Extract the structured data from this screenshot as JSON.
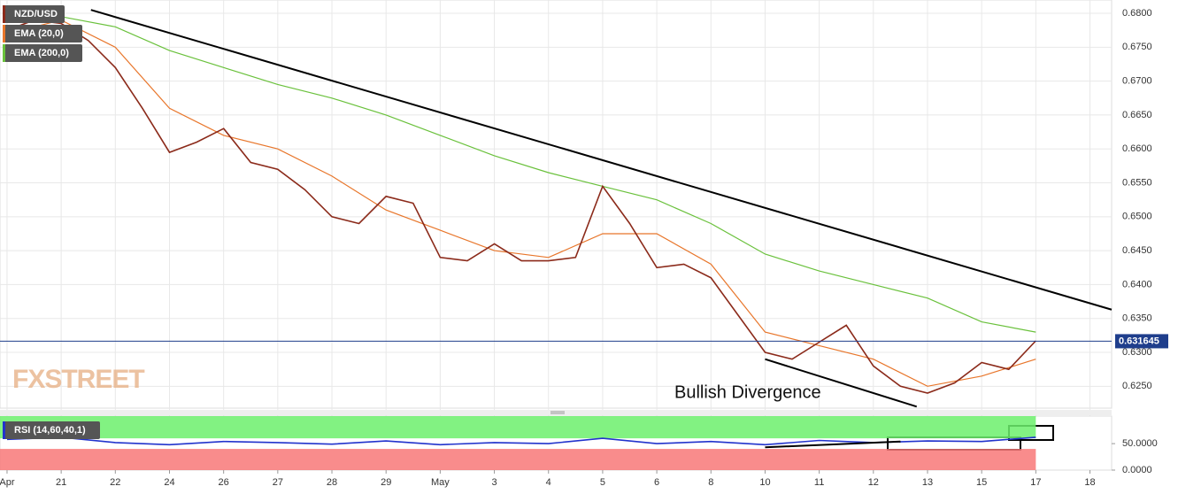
{
  "chart_data": [
    {
      "type": "line",
      "xlim": [
        -0.13,
        20.4
      ],
      "ylim": [
        0.62178,
        0.68196
      ],
      "yticks": [
        {
          "value": 0.625,
          "label": "0.6250"
        },
        {
          "value": 0.63,
          "label": "0.6300"
        },
        {
          "value": 0.635,
          "label": "0.6350"
        },
        {
          "value": 0.64,
          "label": "0.6400"
        },
        {
          "value": 0.645,
          "label": "0.6450"
        },
        {
          "value": 0.65,
          "label": "0.6500"
        },
        {
          "value": 0.655,
          "label": "0.6550"
        },
        {
          "value": 0.66,
          "label": "0.6600"
        },
        {
          "value": 0.665,
          "label": "0.6650"
        },
        {
          "value": 0.67,
          "label": "0.6700"
        },
        {
          "value": 0.675,
          "label": "0.6750"
        },
        {
          "value": 0.68,
          "label": "0.6800"
        }
      ],
      "grid": true,
      "series": [
        {
          "name": "NZD/USD",
          "color": "#8b2a1a",
          "x": [
            0,
            0.5,
            1,
            1.5,
            2,
            2.5,
            3,
            3.5,
            4,
            4.5,
            5,
            5.5,
            6,
            6.5,
            7,
            7.5,
            8,
            8.5,
            9,
            9.5,
            10,
            10.5,
            11,
            11.5,
            12,
            12.5,
            13,
            13.5,
            14,
            14.5,
            15,
            15.5,
            16,
            16.5,
            17,
            17.5,
            18,
            18.5,
            19
          ],
          "values": [
            0.6775,
            0.679,
            0.6785,
            0.676,
            0.672,
            0.666,
            0.6595,
            0.661,
            0.663,
            0.658,
            0.657,
            0.654,
            0.65,
            0.649,
            0.653,
            0.652,
            0.644,
            0.6435,
            0.646,
            0.6435,
            0.6435,
            0.644,
            0.6545,
            0.649,
            0.6425,
            0.643,
            0.641,
            0.6355,
            0.63,
            0.629,
            0.6315,
            0.634,
            0.628,
            0.625,
            0.624,
            0.6255,
            0.6285,
            0.6275,
            0.6317
          ]
        },
        {
          "name": "EMA (20,0)",
          "color": "#e8762b",
          "x": [
            0,
            1,
            2,
            3,
            4,
            5,
            6,
            7,
            8,
            9,
            10,
            11,
            12,
            13,
            14,
            15,
            16,
            17,
            18,
            19
          ],
          "values": [
            0.677,
            0.679,
            0.675,
            0.666,
            0.662,
            0.66,
            0.656,
            0.651,
            0.648,
            0.645,
            0.644,
            0.6475,
            0.6475,
            0.643,
            0.633,
            0.631,
            0.629,
            0.625,
            0.6265,
            0.629
          ]
        },
        {
          "name": "EMA (200,0)",
          "color": "#6ac13c",
          "x": [
            0,
            1,
            2,
            3,
            4,
            5,
            6,
            7,
            8,
            9,
            10,
            11,
            12,
            13,
            14,
            15,
            16,
            17,
            18,
            19
          ],
          "values": [
            0.6795,
            0.6795,
            0.678,
            0.6745,
            0.672,
            0.6695,
            0.6675,
            0.665,
            0.662,
            0.659,
            0.6565,
            0.6545,
            0.6525,
            0.649,
            0.6445,
            0.642,
            0.64,
            0.638,
            0.6345,
            0.633
          ]
        }
      ],
      "last_price": 0.631645,
      "trendlines": [
        {
          "x": [
            1.55,
            20.4
          ],
          "y": [
            0.6805,
            0.6363
          ]
        },
        {
          "x": [
            14,
            16.8
          ],
          "y": [
            0.629,
            0.622
          ]
        }
      ],
      "annotation": "Bullish Divergence",
      "watermark": "FXSTREET"
    },
    {
      "type": "line",
      "xlim": [
        -0.13,
        20.4
      ],
      "ylim": [
        0,
        102
      ],
      "yticks": [
        {
          "value": 50,
          "label": "50.0000"
        },
        {
          "value": 0,
          "label": "0.0000"
        }
      ],
      "xticks": [
        {
          "value": 0,
          "label": "Apr"
        },
        {
          "value": 1,
          "label": "21"
        },
        {
          "value": 2,
          "label": "22"
        },
        {
          "value": 3,
          "label": "24"
        },
        {
          "value": 4,
          "label": "26"
        },
        {
          "value": 5,
          "label": "27"
        },
        {
          "value": 6,
          "label": "28"
        },
        {
          "value": 7,
          "label": "29"
        },
        {
          "value": 8,
          "label": "May"
        },
        {
          "value": 9,
          "label": "3"
        },
        {
          "value": 10,
          "label": "4"
        },
        {
          "value": 11,
          "label": "5"
        },
        {
          "value": 12,
          "label": "6"
        },
        {
          "value": 13,
          "label": "8"
        },
        {
          "value": 14,
          "label": "10"
        },
        {
          "value": 15,
          "label": "11"
        },
        {
          "value": 16,
          "label": "12"
        },
        {
          "value": 17,
          "label": "13"
        },
        {
          "value": 18,
          "label": "15"
        },
        {
          "value": 19,
          "label": "17"
        },
        {
          "value": 20,
          "label": "18"
        }
      ],
      "bands": [
        {
          "from": 60,
          "to": 102,
          "color": "#6cf06c"
        },
        {
          "from": 0,
          "to": 40,
          "color": "#f87878"
        }
      ],
      "series": [
        {
          "name": "RSI (14,60,40,1)",
          "color": "#2233cc",
          "x": [
            0,
            1,
            2,
            3,
            4,
            5,
            6,
            7,
            8,
            9,
            10,
            11,
            12,
            13,
            14,
            15,
            16,
            17,
            18,
            19
          ],
          "values": [
            58,
            62,
            52,
            48,
            54,
            52,
            49,
            55,
            48,
            52,
            50,
            60,
            50,
            54,
            48,
            56,
            52,
            55,
            54,
            62
          ]
        }
      ],
      "trendlines": [
        {
          "x": [
            14,
            16.5
          ],
          "y": [
            43,
            54
          ]
        }
      ]
    }
  ]
}
